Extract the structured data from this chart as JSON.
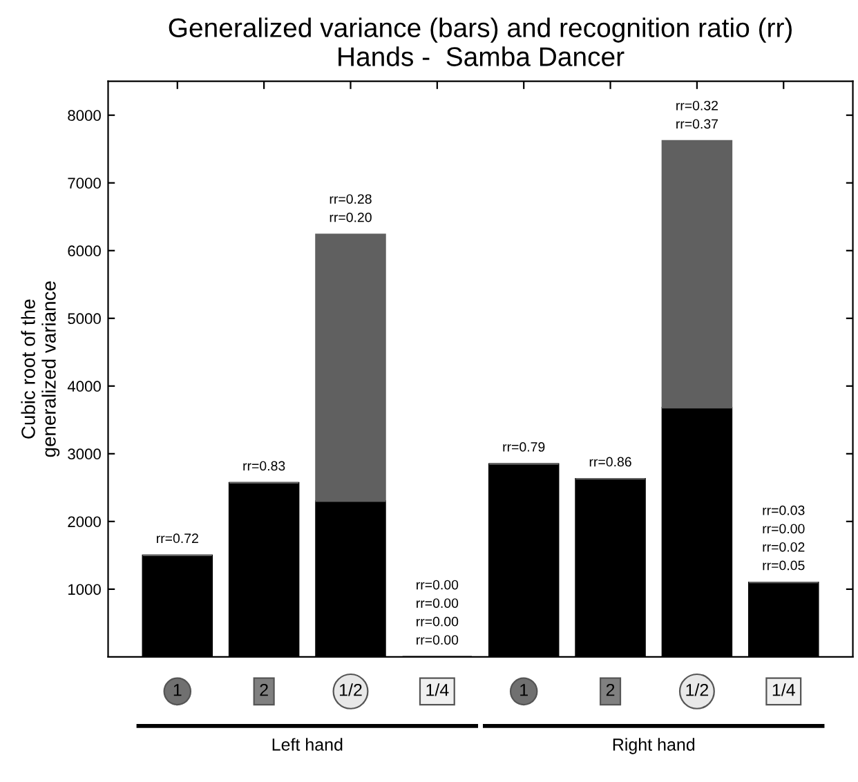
{
  "chart_data": {
    "type": "bar",
    "title": "Generalized variance (bars) and recognition ratio (rr)\nHands -  Samba Dancer",
    "ylabel": "Cubic root of the\ngeneralized variance",
    "categories": [
      "1",
      "2",
      "1/2",
      "1/4",
      "1",
      "2",
      "1/2",
      "1/4"
    ],
    "stacked": true,
    "series": [
      {
        "color": "#000000",
        "values": [
          1500,
          2570,
          2300,
          0,
          2850,
          2630,
          3680,
          1100
        ]
      },
      {
        "color": "#606060",
        "values": [
          0,
          0,
          3940,
          0,
          0,
          0,
          3940,
          0
        ]
      }
    ],
    "ylim": [
      0,
      8500
    ],
    "yticks": [
      1000,
      2000,
      3000,
      4000,
      5000,
      6000,
      7000,
      8000
    ],
    "annotations": [
      "rr=0.72",
      "rr=0.83",
      "rr=0.28\nrr=0.20",
      "rr=0.00\nrr=0.00\nrr=0.00\nrr=0.00",
      "rr=0.79",
      "rr=0.86",
      "rr=0.32\nrr=0.37",
      "rr=0.03\nrr=0.00\nrr=0.02\nrr=0.05",
      "Left hand",
      "Right hand"
    ],
    "grid": false,
    "legend": false
  }
}
